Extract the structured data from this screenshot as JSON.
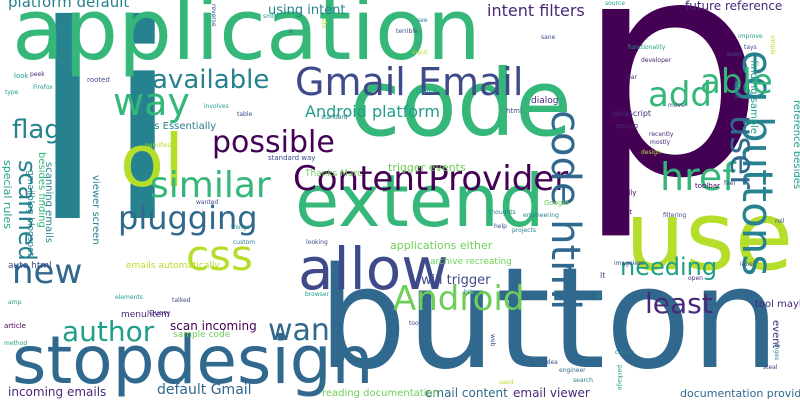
{
  "palette": {
    "purple": "#440154",
    "indigo": "#482878",
    "slate": "#3e4a89",
    "blue": "#31688e",
    "teal": "#26828e",
    "aqua": "#1f9e89",
    "green": "#35b779",
    "lime": "#6ece58",
    "yellow": "#b5de2b"
  },
  "words": [
    {
      "text": "p",
      "color": "purple"
    },
    {
      "text": "li",
      "color": "teal"
    },
    {
      "text": "button",
      "color": "blue"
    },
    {
      "text": "application",
      "color": "green"
    },
    {
      "text": "code",
      "color": "green"
    },
    {
      "text": "use",
      "color": "yellow"
    },
    {
      "text": "ol",
      "color": "yellow"
    },
    {
      "text": "stopdesign",
      "color": "blue"
    },
    {
      "text": "extend",
      "color": "green"
    },
    {
      "text": "allow",
      "color": "slate"
    },
    {
      "text": "Gmail Email",
      "color": "slate"
    },
    {
      "text": "ContentProvider",
      "color": "purple"
    },
    {
      "text": "eg buttons",
      "color": "teal"
    },
    {
      "text": "code html",
      "color": "blue"
    },
    {
      "text": "similar",
      "color": "green"
    },
    {
      "text": "plugging",
      "color": "blue"
    },
    {
      "text": "css",
      "color": "yellow"
    },
    {
      "text": "way",
      "color": "green"
    },
    {
      "text": "able",
      "color": "green"
    },
    {
      "text": "add",
      "color": "green"
    },
    {
      "text": "href",
      "color": "green"
    },
    {
      "text": "new",
      "color": "blue"
    },
    {
      "text": "available",
      "color": "teal"
    },
    {
      "text": "Android",
      "color": "lime"
    },
    {
      "text": "possible",
      "color": "purple"
    },
    {
      "text": "author",
      "color": "aqua"
    },
    {
      "text": "want",
      "color": "blue"
    },
    {
      "text": "least",
      "color": "indigo"
    },
    {
      "text": "user",
      "color": "blue"
    },
    {
      "text": "needing",
      "color": "aqua"
    },
    {
      "text": "flag",
      "color": "teal"
    },
    {
      "text": "scanned",
      "color": "teal"
    },
    {
      "text": "platform default",
      "color": "teal"
    },
    {
      "text": "using intent",
      "color": "teal"
    },
    {
      "text": "intent filters",
      "color": "indigo"
    },
    {
      "text": "future reference",
      "color": "indigo"
    },
    {
      "text": "Android platform",
      "color": "aqua"
    },
    {
      "text": "default Gmail",
      "color": "blue"
    },
    {
      "text": "email content",
      "color": "blue"
    },
    {
      "text": "email viewer",
      "color": "indigo"
    },
    {
      "text": "documentation provided",
      "color": "blue"
    },
    {
      "text": "incoming emails",
      "color": "indigo"
    },
    {
      "text": "scan incoming",
      "color": "purple"
    },
    {
      "text": "sample code",
      "color": "lime"
    },
    {
      "text": "reading documentation",
      "color": "lime"
    },
    {
      "text": "menu item",
      "color": "indigo"
    },
    {
      "text": "filters Essentially",
      "color": "teal"
    },
    {
      "text": "standard way",
      "color": "slate"
    },
    {
      "text": "applications either",
      "color": "lime"
    },
    {
      "text": "trigger events",
      "color": "lime"
    },
    {
      "text": "will trigger",
      "color": "slate"
    },
    {
      "text": "emails automatically",
      "color": "yellow"
    },
    {
      "text": "archive recreating",
      "color": "lime"
    },
    {
      "text": "viewer screen",
      "color": "teal"
    },
    {
      "text": "scanning emails",
      "color": "teal"
    },
    {
      "text": "special rules",
      "color": "aqua"
    },
    {
      "text": "besides finding",
      "color": "green"
    },
    {
      "text": "gmailblog blogspot",
      "color": "teal"
    },
    {
      "text": "auto html",
      "color": "slate"
    },
    {
      "text": "tool maybe",
      "color": "indigo"
    },
    {
      "text": "event",
      "color": "indigo"
    },
    {
      "text": "reference besides",
      "color": "aqua"
    },
    {
      "text": "finding sample",
      "color": "aqua"
    },
    {
      "text": "javascript",
      "color": "indigo"
    },
    {
      "text": "dialog",
      "color": "indigo"
    },
    {
      "text": "html",
      "color": "slate"
    },
    {
      "text": "Thanks Marc",
      "color": "lime"
    },
    {
      "text": "JQuery",
      "color": "indigo"
    },
    {
      "text": "article",
      "color": "purple"
    },
    {
      "text": "popup",
      "color": "indigo"
    },
    {
      "text": "really",
      "color": "purple"
    },
    {
      "text": "toolbar",
      "color": "purple"
    },
    {
      "text": "filtering",
      "color": "slate"
    },
    {
      "text": "engineering",
      "color": "teal"
    },
    {
      "text": "help",
      "color": "slate"
    },
    {
      "text": "projects",
      "color": "teal"
    },
    {
      "text": "thoughts",
      "color": "teal"
    },
    {
      "text": "Google",
      "color": "lime"
    },
    {
      "text": "idea",
      "color": "slate"
    },
    {
      "text": "engineer",
      "color": "blue"
    },
    {
      "text": "search",
      "color": "teal"
    },
    {
      "text": "create",
      "color": "teal"
    },
    {
      "text": "package",
      "color": "aqua"
    },
    {
      "text": "imageless",
      "color": "slate"
    },
    {
      "text": "open",
      "color": "indigo"
    },
    {
      "text": "label",
      "color": "slate"
    },
    {
      "text": "steal",
      "color": "slate"
    },
    {
      "text": "imges",
      "color": "teal"
    },
    {
      "text": "look",
      "color": "aqua"
    },
    {
      "text": "type",
      "color": "aqua"
    },
    {
      "text": "peek",
      "color": "indigo"
    },
    {
      "text": "rooted",
      "color": "slate"
    },
    {
      "text": "Firefox",
      "color": "aqua"
    },
    {
      "text": "reverse",
      "color": "slate"
    },
    {
      "text": "involves",
      "color": "aqua"
    },
    {
      "text": "table",
      "color": "slate"
    },
    {
      "text": "standard",
      "color": "teal"
    },
    {
      "text": "Layout",
      "color": "aqua"
    },
    {
      "text": "input",
      "color": "yellow"
    },
    {
      "text": "terrible",
      "color": "slate"
    },
    {
      "text": "see",
      "color": "teal"
    },
    {
      "text": "sane",
      "color": "slate"
    },
    {
      "text": "functionality",
      "color": "aqua"
    },
    {
      "text": "developer",
      "color": "indigo"
    },
    {
      "text": "recently",
      "color": "indigo"
    },
    {
      "text": "mostly",
      "color": "indigo"
    },
    {
      "text": "design",
      "color": "yellow"
    },
    {
      "text": "bar",
      "color": "indigo"
    },
    {
      "text": "move",
      "color": "slate"
    },
    {
      "text": "source",
      "color": "aqua"
    },
    {
      "text": "improve",
      "color": "aqua"
    },
    {
      "text": "even",
      "color": "slate"
    },
    {
      "text": "tays",
      "color": "slate"
    },
    {
      "text": "onclick",
      "color": "slate"
    },
    {
      "text": "feel",
      "color": "slate"
    },
    {
      "text": "roll",
      "color": "slate"
    },
    {
      "text": "gt",
      "color": "purple"
    },
    {
      "text": "lt",
      "color": "slate"
    },
    {
      "text": "ul",
      "color": "aqua"
    },
    {
      "text": "web",
      "color": "slate"
    },
    {
      "text": "bring",
      "color": "teal"
    },
    {
      "text": "looking",
      "color": "slate"
    },
    {
      "text": "browser",
      "color": "aqua"
    },
    {
      "text": "wanted",
      "color": "slate"
    },
    {
      "text": "things",
      "color": "teal"
    },
    {
      "text": "custom",
      "color": "teal"
    },
    {
      "text": "elements",
      "color": "aqua"
    },
    {
      "text": "talked",
      "color": "slate"
    },
    {
      "text": "amp",
      "color": "aqua"
    },
    {
      "text": "method",
      "color": "aqua"
    },
    {
      "text": "tool",
      "color": "slate"
    },
    {
      "text": "numifies",
      "color": "yellow"
    },
    {
      "text": "used",
      "color": "yellow"
    },
    {
      "text": "simple",
      "color": "yellow"
    },
    {
      "text": "site",
      "color": "yellow"
    },
    {
      "text": "ir",
      "color": "slate"
    },
    {
      "text": "smtp",
      "color": "aqua"
    }
  ]
}
